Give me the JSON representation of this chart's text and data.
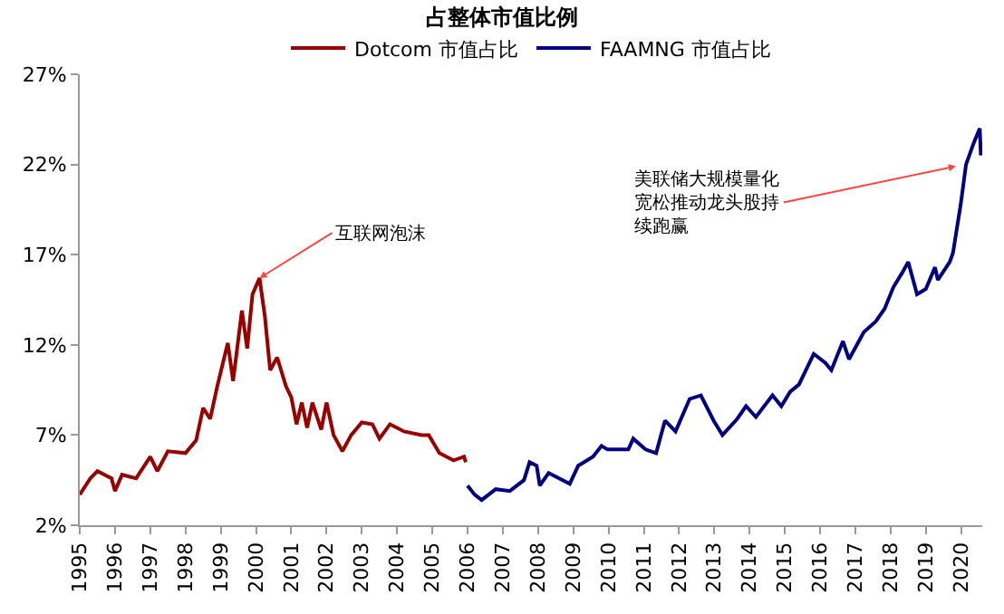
{
  "chart_data": {
    "type": "line",
    "title": "占整体市值比例",
    "series": [
      {
        "name": "Dotcom 市值占比",
        "color": "#990000",
        "x": [
          1995.0,
          1995.3,
          1995.5,
          1995.9,
          1996.0,
          1996.2,
          1996.6,
          1997.0,
          1997.2,
          1997.5,
          1998.0,
          1998.3,
          1998.5,
          1998.7,
          1998.9,
          1999.2,
          1999.35,
          1999.6,
          1999.75,
          1999.9,
          2000.1,
          2000.25,
          2000.4,
          2000.6,
          2000.85,
          2001.0,
          2001.15,
          2001.3,
          2001.45,
          2001.6,
          2001.85,
          2002.0,
          2002.2,
          2002.45,
          2002.7,
          2003.0,
          2003.3,
          2003.5,
          2003.8,
          2004.2,
          2004.7,
          2004.9,
          2005.2,
          2005.6,
          2005.9,
          2005.95
        ],
        "values": [
          3.7,
          4.6,
          5.0,
          4.6,
          3.9,
          4.8,
          4.6,
          5.8,
          5.0,
          6.1,
          6.0,
          6.7,
          8.5,
          7.9,
          9.7,
          12.1,
          10.0,
          13.9,
          11.8,
          14.8,
          15.7,
          13.6,
          10.6,
          11.3,
          9.7,
          9.1,
          7.6,
          8.8,
          7.4,
          8.8,
          7.3,
          8.8,
          7.0,
          6.1,
          7.0,
          7.7,
          7.6,
          6.8,
          7.6,
          7.2,
          7.0,
          7.0,
          6.0,
          5.6,
          5.8,
          5.5
        ]
      },
      {
        "name": "FAAMNG 市值占比",
        "color": "#000080",
        "x": [
          2006.0,
          2006.2,
          2006.4,
          2006.8,
          2007.2,
          2007.6,
          2007.76,
          2007.96,
          2008.05,
          2008.3,
          2008.9,
          2009.14,
          2009.56,
          2009.8,
          2009.97,
          2010.56,
          2010.7,
          2011.05,
          2011.35,
          2011.6,
          2011.9,
          2012.3,
          2012.62,
          2012.98,
          2013.23,
          2013.65,
          2013.9,
          2014.18,
          2014.65,
          2014.9,
          2015.15,
          2015.4,
          2015.82,
          2016.15,
          2016.32,
          2016.65,
          2016.82,
          2017.24,
          2017.58,
          2017.83,
          2018.08,
          2018.33,
          2018.5,
          2018.75,
          2019.0,
          2019.26,
          2019.34,
          2019.68,
          2019.77,
          2019.99,
          2020.14,
          2020.36,
          2020.53,
          2020.56
        ],
        "values": [
          4.2,
          3.7,
          3.4,
          4.0,
          3.9,
          4.5,
          5.5,
          5.3,
          4.2,
          4.9,
          4.3,
          5.3,
          5.8,
          6.4,
          6.2,
          6.2,
          6.8,
          6.2,
          6.0,
          7.8,
          7.2,
          9.0,
          9.2,
          7.8,
          7.0,
          7.9,
          8.6,
          8.0,
          9.2,
          8.6,
          9.4,
          9.8,
          11.5,
          11.0,
          10.6,
          12.2,
          11.2,
          12.7,
          13.3,
          14.0,
          15.2,
          16.0,
          16.6,
          14.8,
          15.1,
          16.3,
          15.6,
          16.6,
          17.1,
          19.8,
          22.0,
          23.2,
          24.0,
          22.5
        ]
      }
    ],
    "xlim": [
      1995,
      2020.6
    ],
    "xticks": [
      1995,
      1996,
      1997,
      1998,
      1999,
      2000,
      2001,
      2002,
      2003,
      2004,
      2005,
      2006,
      2007,
      2008,
      2009,
      2010,
      2011,
      2012,
      2013,
      2014,
      2015,
      2016,
      2017,
      2018,
      2019,
      2020
    ],
    "ylim": [
      2,
      27
    ],
    "yticks": [
      {
        "value": 2,
        "label": "2%"
      },
      {
        "value": 7,
        "label": "7%"
      },
      {
        "value": 12,
        "label": "12%"
      },
      {
        "value": 17,
        "label": "17%"
      },
      {
        "value": 22,
        "label": "22%"
      },
      {
        "value": 27,
        "label": "27%"
      }
    ],
    "annotations": [
      {
        "text": "互联网泡沫",
        "x": 2000.1,
        "y": 15.7
      },
      {
        "text": "美联储大规模量化宽松推动龙头股持续跑赢",
        "x": 2019.85,
        "y": 21.9
      }
    ],
    "legend": "top",
    "marker": "none",
    "line_style": "solid"
  }
}
